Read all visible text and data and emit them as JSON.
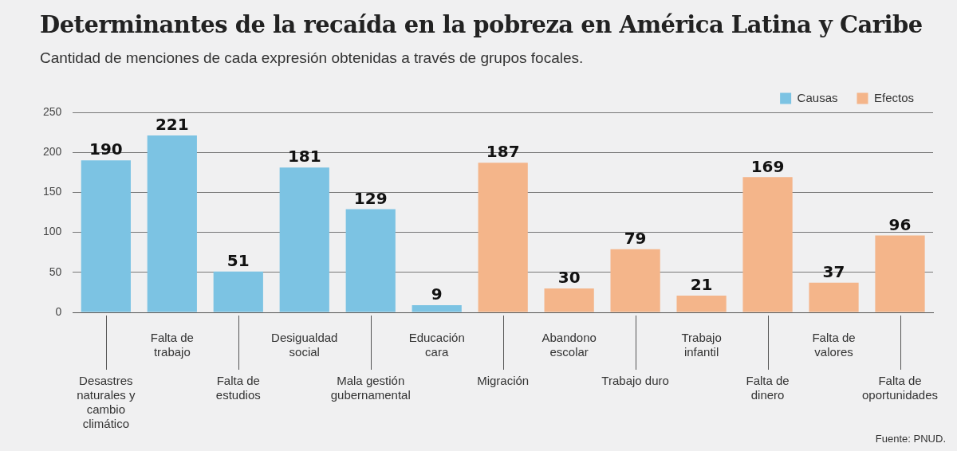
{
  "chart_data": {
    "type": "bar",
    "title": "Determinantes de la recaída en la pobreza en América Latina y Caribe",
    "subtitle": "Cantidad de menciones de cada expresión obtenidas a través de grupos focales.",
    "categories": [
      "Desastres naturales y cambio climático",
      "Falta de trabajo",
      "Falta de estudios",
      "Desigualdad social",
      "Mala gestión gubernamental",
      "Educación cara",
      "Migración",
      "Abandono escolar",
      "Trabajo duro",
      "Trabajo infantil",
      "Falta de dinero",
      "Falta de valores",
      "Falta de oportunidades"
    ],
    "series": [
      {
        "name": "Causas",
        "color": "#7cc3e3",
        "values": [
          190,
          221,
          51,
          181,
          129,
          9,
          null,
          null,
          null,
          null,
          null,
          null,
          null
        ]
      },
      {
        "name": "Efectos",
        "color": "#f4b58a",
        "values": [
          null,
          null,
          null,
          null,
          null,
          null,
          187,
          30,
          79,
          21,
          169,
          37,
          96
        ]
      }
    ],
    "ylim": [
      0,
      250
    ],
    "yticks": [
      0,
      50,
      100,
      150,
      200,
      250
    ],
    "grid": "y",
    "legend": "top right",
    "data_labels": true,
    "annotations": [
      "Fuente: PNUD."
    ]
  }
}
